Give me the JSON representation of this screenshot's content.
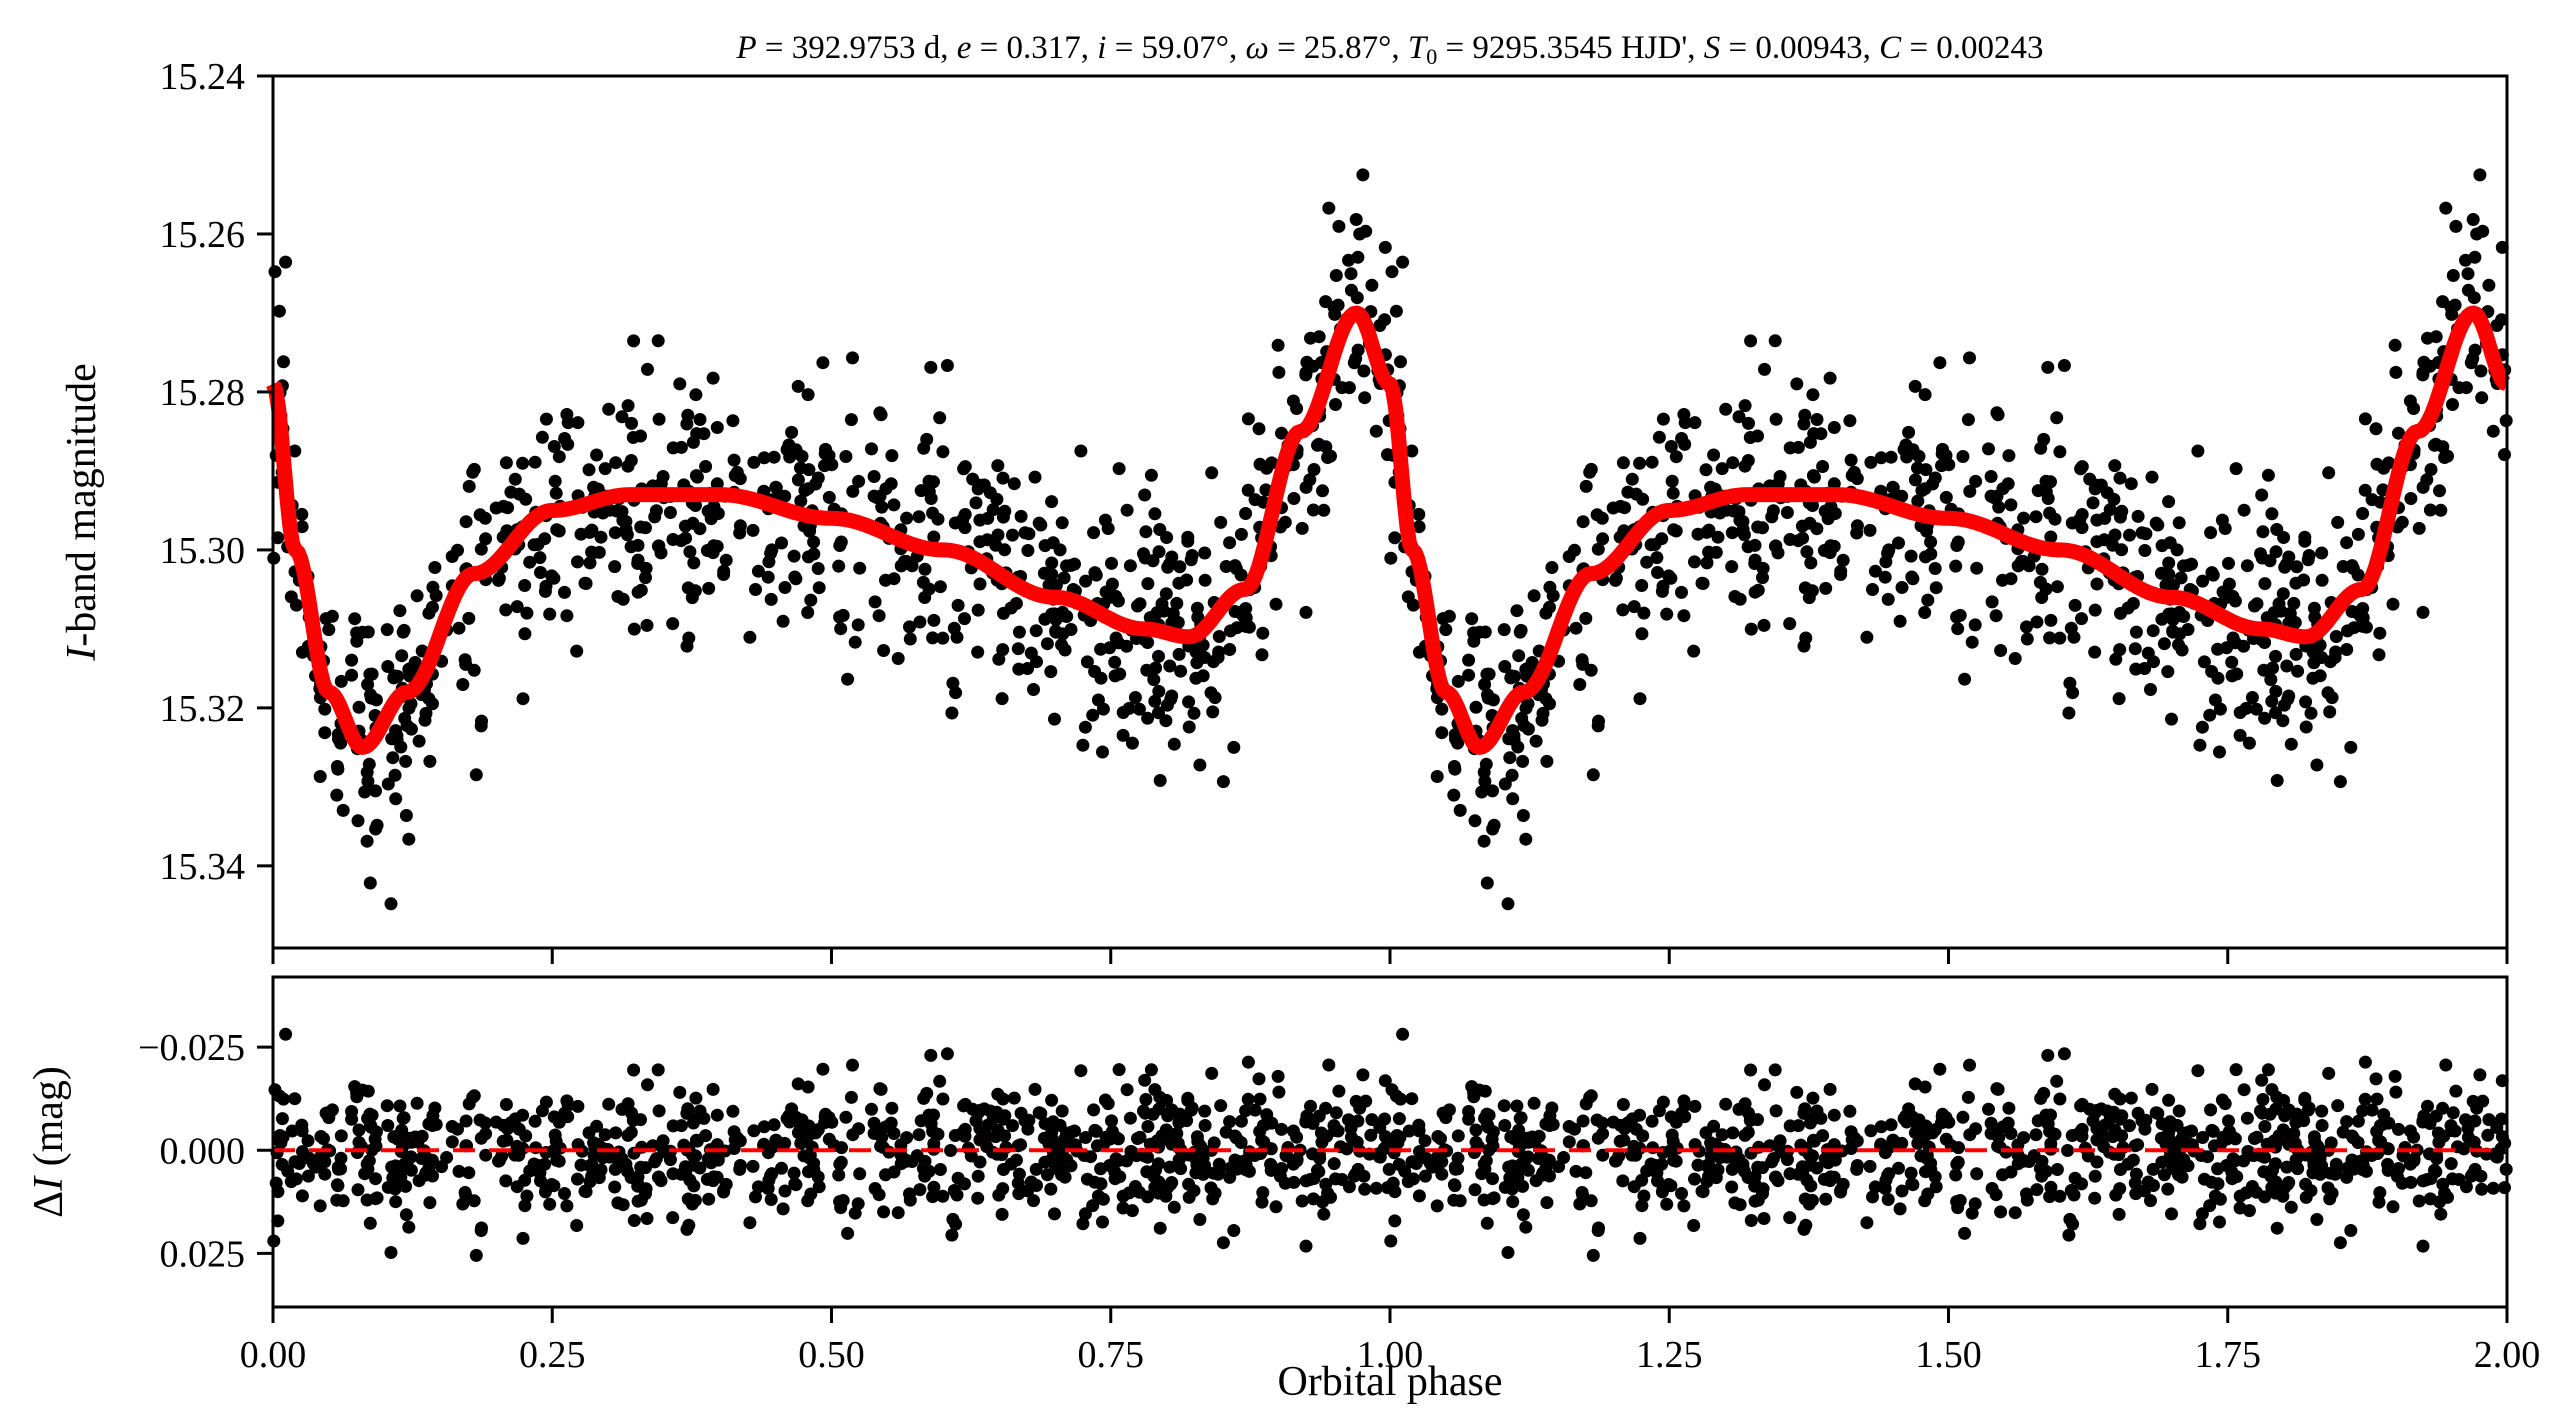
{
  "chart_data": [
    {
      "type": "scatter",
      "panel": "top",
      "title": "P = 392.9753 d, e = 0.317, i = 59.07°, ω = 25.87°, T0 = 9295.3545 HJD', S = 0.00943, C = 0.00243",
      "title_parts": {
        "P": "P",
        "P_val": " = 392.9753 d, ",
        "e": "e",
        "e_val": " = 0.317, ",
        "i": "i",
        "i_val": " = 59.07°, ",
        "w": "ω",
        "w_val": " = 25.87°, ",
        "T": "T",
        "T_sub": "0",
        "T_val": " = 9295.3545 HJD', ",
        "S": "S",
        "S_val": " = 0.00943, ",
        "C": "C",
        "C_val": " = 0.00243"
      },
      "ylabel_italic": "I",
      "ylabel_rest": "-band magnitude",
      "xlim": [
        0,
        2
      ],
      "ylim": [
        15.3504,
        15.24
      ],
      "yticks": [
        "15.24",
        "15.26",
        "15.28",
        "15.30",
        "15.32",
        "15.34"
      ],
      "observations": {
        "color": "#000000",
        "points_per_cycle": 850,
        "noise_sigma": 0.0085,
        "phase_repeated": true
      },
      "model": {
        "color": "#ff0000",
        "phase": [
          0,
          0.02,
          0.05,
          0.08,
          0.12,
          0.18,
          0.25,
          0.32,
          0.4,
          0.5,
          0.6,
          0.7,
          0.78,
          0.82,
          0.87,
          0.92,
          0.97,
          1.0
        ],
        "magnitude": [
          15.279,
          15.3,
          15.318,
          15.325,
          15.318,
          15.303,
          15.295,
          15.293,
          15.293,
          15.296,
          15.3,
          15.306,
          15.31,
          15.311,
          15.305,
          15.285,
          15.27,
          15.279
        ]
      }
    },
    {
      "type": "scatter",
      "panel": "bottom",
      "xlabel": "Orbital phase",
      "ylabel_delta": "Δ",
      "ylabel_italic": "I",
      "ylabel_rest": " (mag)",
      "xlim": [
        0,
        2
      ],
      "ylim": [
        0.038,
        -0.042
      ],
      "xticks": [
        "0.00",
        "0.25",
        "0.50",
        "0.75",
        "1.00",
        "1.25",
        "1.50",
        "1.75",
        "2.00"
      ],
      "yticks": [
        "−0.025",
        "0.000",
        "0.025"
      ],
      "zero_line": {
        "value": 0,
        "color": "#ff0000",
        "style": "dashed"
      }
    }
  ]
}
